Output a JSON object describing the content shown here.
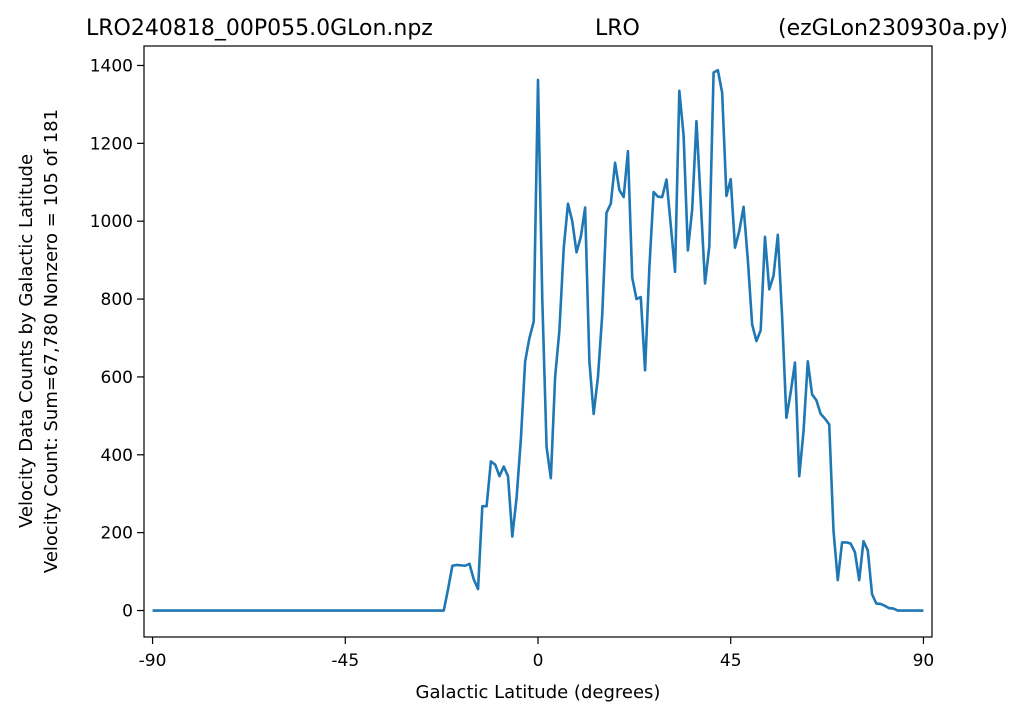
{
  "header": {
    "filename": "LRO240818_00P055.0GLon.npz",
    "station": "LRO",
    "script": "(ezGLon230930a.py)"
  },
  "chart_data": {
    "type": "line",
    "xlabel": "Galactic Latitude (degrees)",
    "ylabel_line1": "Velocity Data Counts by Galactic Latitude",
    "ylabel_line2": "Velocity Count: Sum=67,780 Nonzero = 105 of 181",
    "xlim": [
      -92,
      92
    ],
    "ylim": [
      -68,
      1450
    ],
    "xticks": [
      -90,
      -45,
      0,
      45,
      90
    ],
    "xtick_labels": [
      "-90",
      "-45",
      "0",
      "45",
      "90"
    ],
    "yticks": [
      0,
      200,
      400,
      600,
      800,
      1000,
      1200,
      1400
    ],
    "ytick_labels": [
      "0",
      "200",
      "400",
      "600",
      "800",
      "1000",
      "1200",
      "1400"
    ],
    "grid": false,
    "series": [
      {
        "color": "#1f77b4",
        "points": [
          [
            -90,
            0
          ],
          [
            -22,
            0
          ],
          [
            -21,
            55
          ],
          [
            -20,
            115
          ],
          [
            -19,
            117
          ],
          [
            -18,
            116
          ],
          [
            -17,
            115
          ],
          [
            -16,
            120
          ],
          [
            -15,
            80
          ],
          [
            -14,
            55
          ],
          [
            -13,
            268
          ],
          [
            -12,
            268
          ],
          [
            -11,
            383
          ],
          [
            -10,
            375
          ],
          [
            -9,
            345
          ],
          [
            -8,
            370
          ],
          [
            -7,
            345
          ],
          [
            -6,
            190
          ],
          [
            -5,
            290
          ],
          [
            -4,
            440
          ],
          [
            -3,
            640
          ],
          [
            -2,
            700
          ],
          [
            -1,
            742
          ],
          [
            0,
            1363
          ],
          [
            1,
            800
          ],
          [
            2,
            420
          ],
          [
            3,
            340
          ],
          [
            4,
            600
          ],
          [
            5,
            720
          ],
          [
            6,
            930
          ],
          [
            7,
            1045
          ],
          [
            8,
            1000
          ],
          [
            9,
            920
          ],
          [
            10,
            960
          ],
          [
            11,
            1035
          ],
          [
            12,
            640
          ],
          [
            13,
            505
          ],
          [
            14,
            600
          ],
          [
            15,
            760
          ],
          [
            16,
            1022
          ],
          [
            17,
            1045
          ],
          [
            18,
            1150
          ],
          [
            19,
            1080
          ],
          [
            20,
            1062
          ],
          [
            21,
            1180
          ],
          [
            22,
            855
          ],
          [
            23,
            800
          ],
          [
            24,
            805
          ],
          [
            25,
            617
          ],
          [
            26,
            880
          ],
          [
            27,
            1075
          ],
          [
            28,
            1063
          ],
          [
            29,
            1062
          ],
          [
            30,
            1107
          ],
          [
            31,
            990
          ],
          [
            32,
            870
          ],
          [
            33,
            1335
          ],
          [
            34,
            1220
          ],
          [
            35,
            925
          ],
          [
            36,
            1030
          ],
          [
            37,
            1257
          ],
          [
            38,
            1050
          ],
          [
            39,
            840
          ],
          [
            40,
            935
          ],
          [
            41,
            1382
          ],
          [
            42,
            1388
          ],
          [
            43,
            1330
          ],
          [
            44,
            1065
          ],
          [
            45,
            1108
          ],
          [
            46,
            932
          ],
          [
            47,
            975
          ],
          [
            48,
            1037
          ],
          [
            49,
            900
          ],
          [
            50,
            735
          ],
          [
            51,
            692
          ],
          [
            52,
            720
          ],
          [
            53,
            960
          ],
          [
            54,
            825
          ],
          [
            55,
            860
          ],
          [
            56,
            965
          ],
          [
            57,
            755
          ],
          [
            58,
            495
          ],
          [
            59,
            560
          ],
          [
            60,
            637
          ],
          [
            61,
            345
          ],
          [
            62,
            460
          ],
          [
            63,
            640
          ],
          [
            64,
            555
          ],
          [
            65,
            540
          ],
          [
            66,
            505
          ],
          [
            67,
            493
          ],
          [
            68,
            478
          ],
          [
            69,
            205
          ],
          [
            70,
            78
          ],
          [
            71,
            175
          ],
          [
            72,
            175
          ],
          [
            73,
            172
          ],
          [
            74,
            150
          ],
          [
            75,
            78
          ],
          [
            76,
            178
          ],
          [
            77,
            155
          ],
          [
            78,
            42
          ],
          [
            79,
            18
          ],
          [
            80,
            17
          ],
          [
            81,
            12
          ],
          [
            82,
            6
          ],
          [
            83,
            5
          ],
          [
            84,
            0
          ],
          [
            90,
            0
          ]
        ]
      }
    ]
  }
}
